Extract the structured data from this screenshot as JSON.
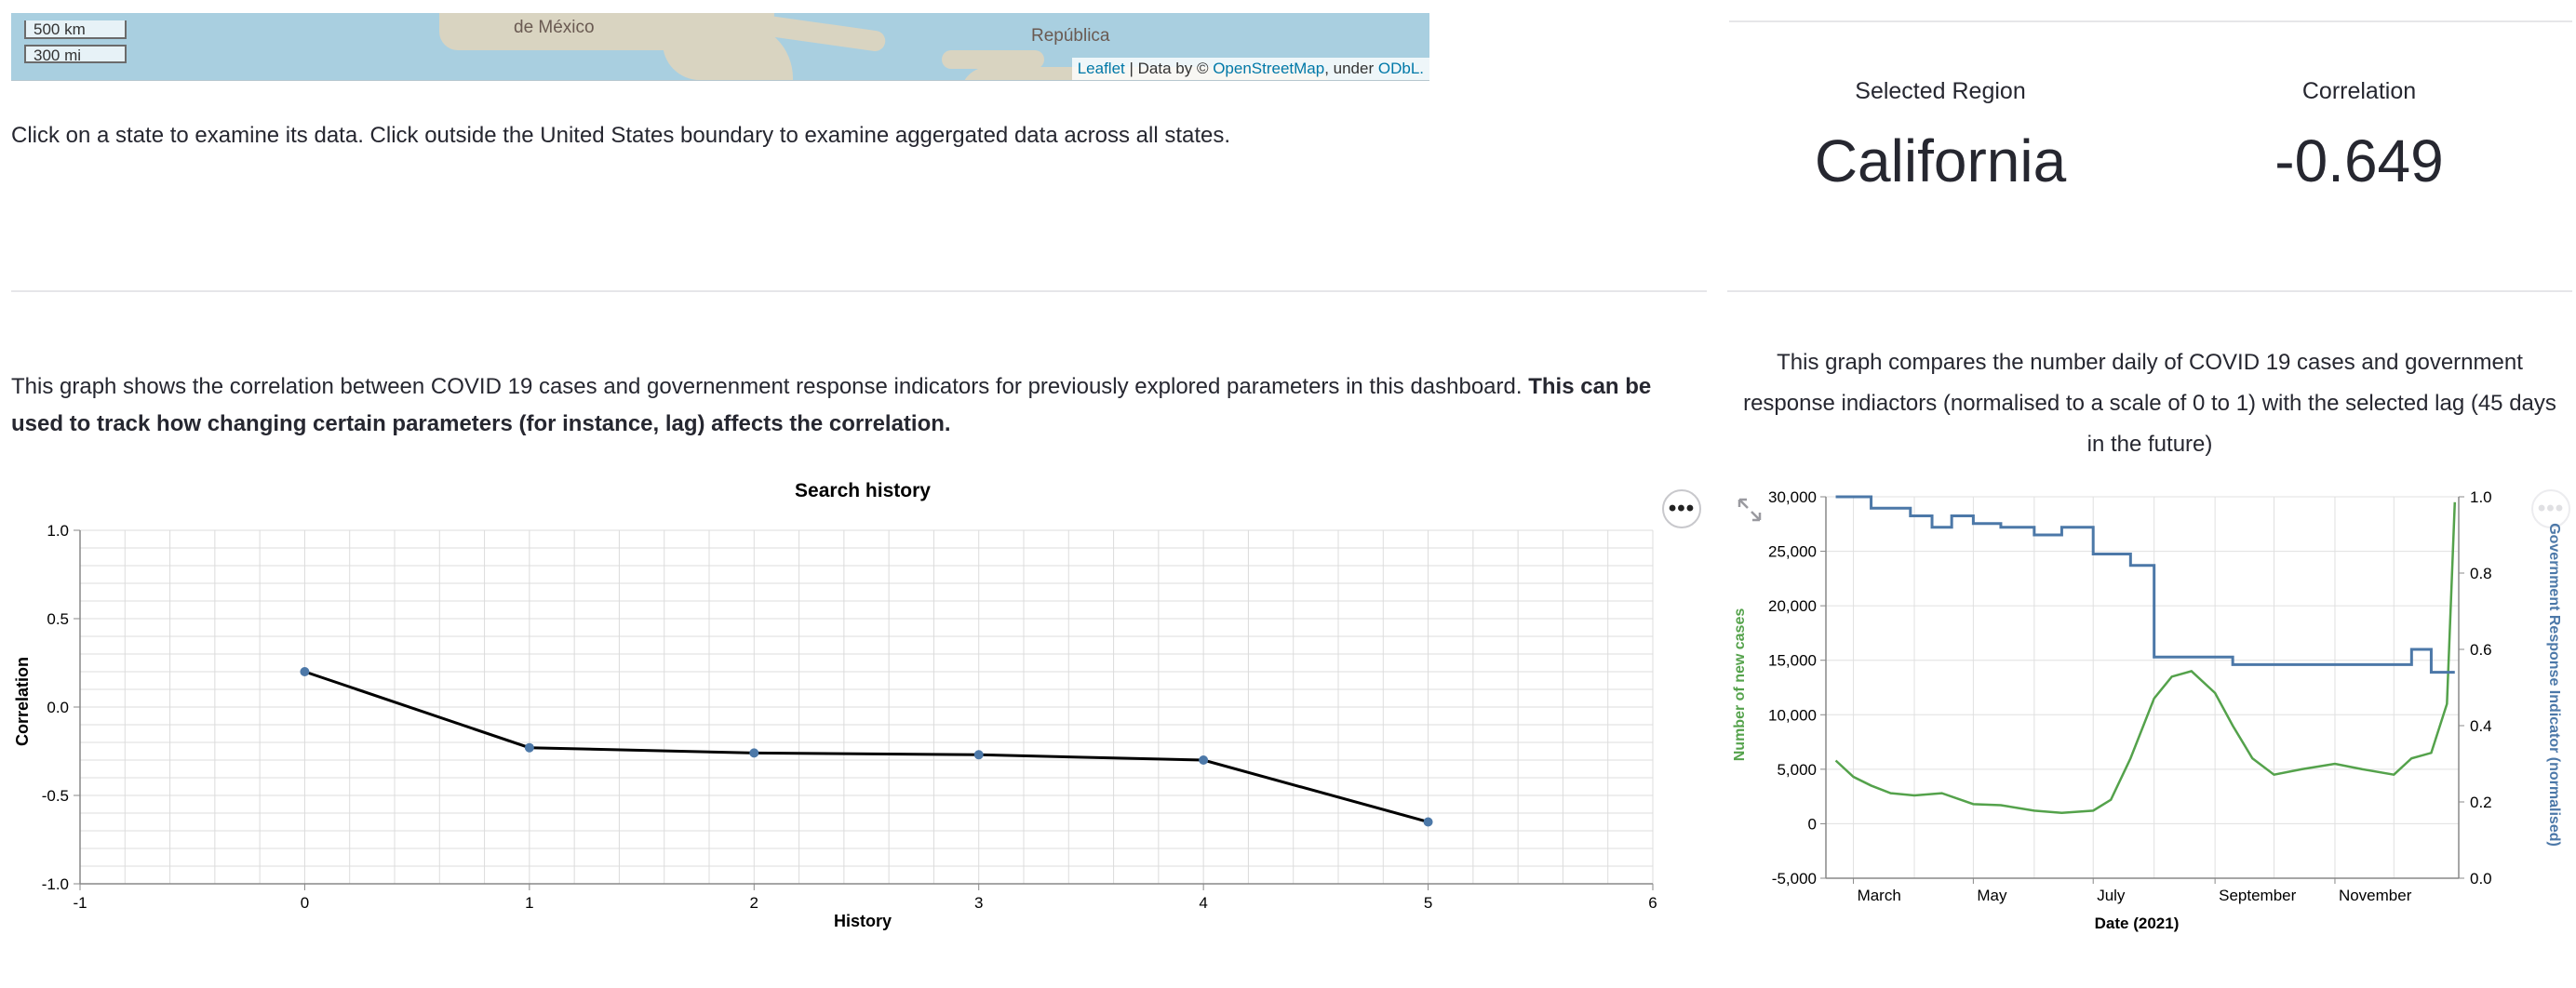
{
  "map": {
    "scale_km": "500 km",
    "scale_mi": "300 mi",
    "place_mexico": "de México",
    "place_republica": "República",
    "attribution_leaflet": "Leaflet",
    "attribution_mid": " | Data by © ",
    "attribution_osm": "OpenStreetMap",
    "attribution_under": ", under ",
    "attribution_odbl": "ODbL."
  },
  "instructions": "Click on a state to examine its data. Click outside the United States boundary to examine aggergated data across all states.",
  "metrics": {
    "region_label": "Selected Region",
    "region_value": "California",
    "correlation_label": "Correlation",
    "correlation_value": "-0.649"
  },
  "history_description": {
    "normal": "This graph shows the correlation between COVID 19 cases and governenment response indicators for previously explored parameters in this dashboard. ",
    "bold": "This can be used to track how changing certain parameters (for instance, lag) affects the correlation."
  },
  "compare_description": "This graph compares the number daily of COVID 19 cases and government response indiactors (normalised to a scale of 0 to 1) with the selected lag (45 days in the future)",
  "menu_glyph": "•••",
  "colors": {
    "cases": "#54a24b",
    "indicator": "#4c78a8",
    "history_line": "#000000",
    "history_point": "#4c78a8"
  },
  "chart_data": [
    {
      "type": "line",
      "title": "Search history",
      "xlabel": "History",
      "ylabel": "Correlation",
      "x": [
        0,
        1,
        2,
        3,
        4,
        5
      ],
      "y": [
        0.2,
        -0.23,
        -0.26,
        -0.27,
        -0.3,
        -0.65
      ],
      "xlim": [
        -1,
        6
      ],
      "ylim": [
        -1,
        1
      ],
      "xticks": [
        "-1",
        "0",
        "1",
        "2",
        "3",
        "4",
        "5",
        "6"
      ],
      "yticks": [
        "1.0",
        "0.5",
        "0.0",
        "-0.5",
        "-1.0"
      ],
      "grid": true
    },
    {
      "type": "line",
      "title": "",
      "xlabel": "Date (2021)",
      "ylabel_left": "Number of new cases",
      "ylabel_right": "Government Response Indicator (normalised)",
      "xticks": [
        "March",
        "May",
        "July",
        "September",
        "November"
      ],
      "yticks_left": [
        "30,000",
        "25,000",
        "20,000",
        "15,000",
        "10,000",
        "5,000",
        "0",
        "-5,000"
      ],
      "yticks_right": [
        "1.0",
        "0.8",
        "0.6",
        "0.4",
        "0.2",
        "0.0"
      ],
      "ylim_left": [
        -5000,
        30000
      ],
      "ylim_right": [
        0,
        1
      ],
      "series": [
        {
          "name": "Number of new cases",
          "axis": "left",
          "x": [
            "2021-02-20",
            "2021-03-01",
            "2021-03-10",
            "2021-03-20",
            "2021-04-01",
            "2021-04-15",
            "2021-05-01",
            "2021-05-15",
            "2021-06-01",
            "2021-06-15",
            "2021-07-01",
            "2021-07-10",
            "2021-07-20",
            "2021-08-01",
            "2021-08-10",
            "2021-08-20",
            "2021-09-01",
            "2021-09-10",
            "2021-09-20",
            "2021-10-01",
            "2021-10-15",
            "2021-11-01",
            "2021-11-15",
            "2021-12-01",
            "2021-12-10",
            "2021-12-20",
            "2021-12-28",
            "2022-01-01"
          ],
          "y": [
            5800,
            4300,
            3500,
            2800,
            2600,
            2800,
            1800,
            1700,
            1200,
            1000,
            1200,
            2200,
            6000,
            11500,
            13500,
            14000,
            12000,
            9000,
            6000,
            4500,
            5000,
            5500,
            5000,
            4500,
            6000,
            6500,
            11000,
            29500
          ]
        },
        {
          "name": "Government Response Indicator (normalised)",
          "axis": "right",
          "x": [
            "2021-02-20",
            "2021-03-10",
            "2021-03-30",
            "2021-04-10",
            "2021-04-20",
            "2021-05-01",
            "2021-05-15",
            "2021-06-01",
            "2021-06-15",
            "2021-07-01",
            "2021-07-20",
            "2021-08-01",
            "2021-08-20",
            "2021-09-10",
            "2021-10-01",
            "2021-11-01",
            "2021-12-01",
            "2021-12-10",
            "2021-12-20",
            "2022-01-01"
          ],
          "y": [
            1.0,
            0.97,
            0.95,
            0.92,
            0.95,
            0.93,
            0.92,
            0.9,
            0.92,
            0.85,
            0.82,
            0.58,
            0.58,
            0.56,
            0.56,
            0.56,
            0.56,
            0.6,
            0.54,
            0.54
          ]
        }
      ]
    }
  ]
}
